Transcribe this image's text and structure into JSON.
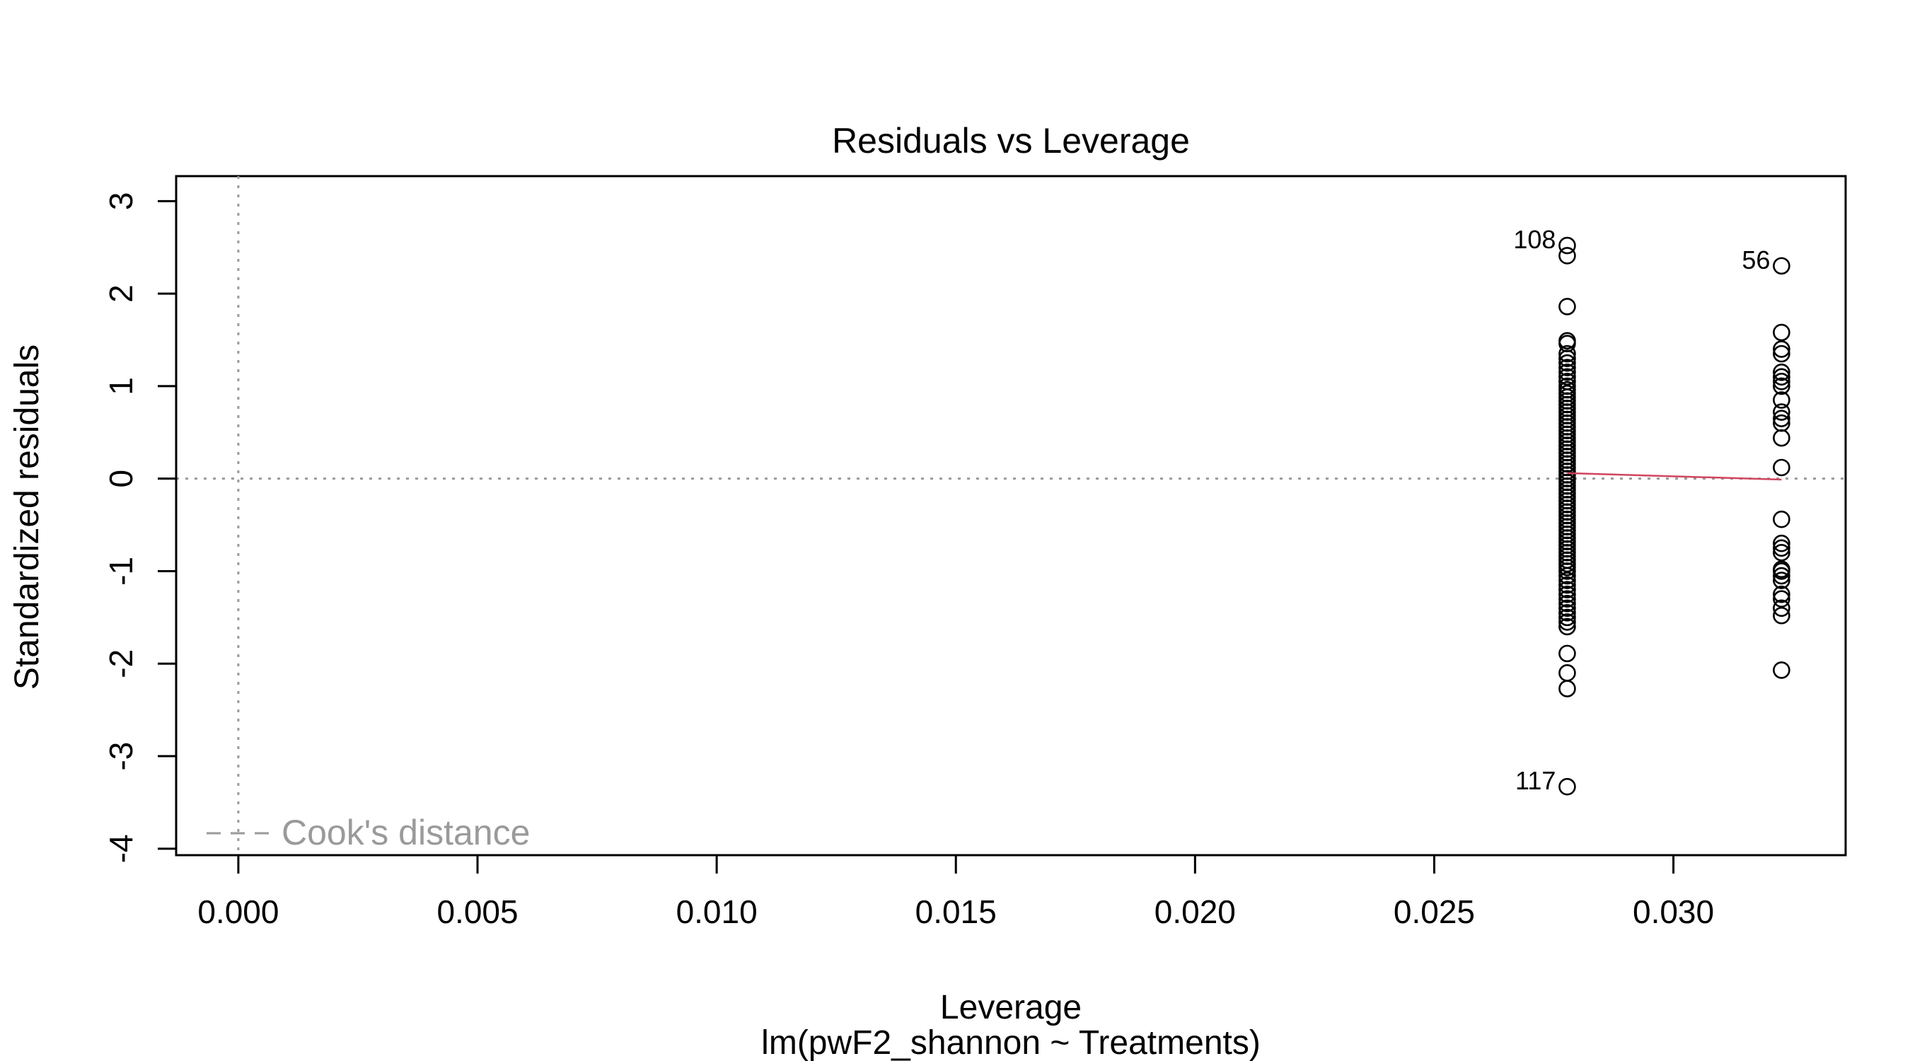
{
  "chart_data": {
    "type": "scatter",
    "title": "Residuals vs Leverage",
    "xlabel": "Leverage",
    "subtitle": "lm(pwF2_shannon ~ Treatments)",
    "ylabel": "Standardized residuals",
    "xlim": [
      -0.0013,
      0.0336
    ],
    "ylim": [
      -4.07,
      3.27
    ],
    "x_ticks": [
      0.0,
      0.005,
      0.01,
      0.015,
      0.02,
      0.025,
      0.03
    ],
    "x_tick_labels": [
      "0.000",
      "0.005",
      "0.010",
      "0.015",
      "0.020",
      "0.025",
      "0.030"
    ],
    "y_ticks": [
      -4,
      -3,
      -2,
      -1,
      0,
      1,
      2,
      3
    ],
    "y_tick_labels": [
      "-4",
      "-3",
      "-2",
      "-1",
      "0",
      "1",
      "2",
      "3"
    ],
    "reference_lines": {
      "h0": 0,
      "v0": 0,
      "style": "dotted",
      "color": "#9a9a9a"
    },
    "smooth_line": {
      "color": "#d0455f",
      "x": [
        0.02778,
        0.03226
      ],
      "y": [
        0.06,
        -0.01
      ]
    },
    "legend": {
      "label": "Cook's distance",
      "position": "bottom-left",
      "color": "#9a9a9a"
    },
    "point_labels": [
      {
        "text": "108",
        "x": 0.02778,
        "y": 2.52
      },
      {
        "text": "56",
        "x": 0.03226,
        "y": 2.3
      },
      {
        "text": "117",
        "x": 0.02778,
        "y": -3.33
      }
    ],
    "series": [
      {
        "x": 0.02778,
        "values": [
          2.52,
          2.41,
          1.86,
          1.49,
          1.46,
          1.35,
          1.3,
          1.25,
          1.2,
          1.15,
          1.1,
          1.05,
          1.0,
          0.96,
          0.92,
          0.88,
          0.84,
          0.8,
          0.76,
          0.72,
          0.68,
          0.64,
          0.6,
          0.56,
          0.52,
          0.48,
          0.44,
          0.4,
          0.36,
          0.32,
          0.28,
          0.24,
          0.2,
          0.16,
          0.12,
          0.08,
          0.04,
          0.0,
          -0.04,
          -0.08,
          -0.12,
          -0.16,
          -0.2,
          -0.24,
          -0.28,
          -0.32,
          -0.36,
          -0.4,
          -0.44,
          -0.48,
          -0.52,
          -0.56,
          -0.6,
          -0.64,
          -0.68,
          -0.72,
          -0.76,
          -0.8,
          -0.84,
          -0.88,
          -0.92,
          -0.96,
          -1.0,
          -1.05,
          -1.1,
          -1.15,
          -1.2,
          -1.25,
          -1.3,
          -1.35,
          -1.4,
          -1.45,
          -1.5,
          -1.55,
          -1.6,
          -1.89,
          -2.1,
          -2.27,
          -3.33
        ]
      },
      {
        "x": 0.03226,
        "values": [
          2.3,
          1.58,
          1.4,
          1.35,
          1.15,
          1.1,
          1.05,
          1.0,
          0.85,
          0.72,
          0.65,
          0.6,
          0.44,
          0.12,
          -0.44,
          -0.7,
          -0.75,
          -0.8,
          -0.98,
          -1.0,
          -1.05,
          -1.1,
          -1.25,
          -1.3,
          -1.4,
          -1.48,
          -2.07
        ]
      }
    ]
  }
}
